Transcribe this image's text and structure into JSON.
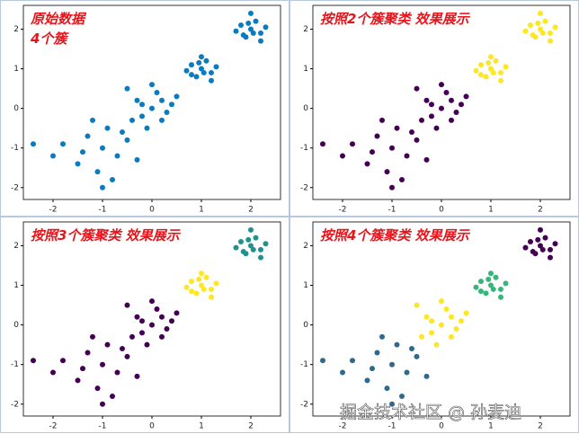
{
  "chart_data": [
    {
      "type": "scatter",
      "title": "原始数据",
      "subtitle": "4个簇",
      "xlim": [
        -2.6,
        2.6
      ],
      "ylim": [
        -2.3,
        2.6
      ],
      "xticks": [
        -2,
        -1,
        0,
        1,
        2
      ],
      "yticks": [
        -2,
        -1,
        0,
        1,
        2
      ],
      "series": [
        {
          "color": "#0a7bbf",
          "x": [
            -1.0,
            -1.3,
            -0.7,
            -1.5,
            -0.5,
            -1.1,
            -0.9,
            -1.8,
            -0.3,
            -1.2,
            -0.8,
            -2.0,
            -1.4,
            -0.6,
            -1.0,
            -2.4,
            0.0,
            -0.3,
            0.2,
            0.4,
            -0.2,
            0.1,
            -0.5,
            0.3,
            -0.1,
            0.5,
            -0.4,
            0.0,
            0.2,
            -0.2,
            1.0,
            0.8,
            1.2,
            0.9,
            1.1,
            1.3,
            0.7,
            1.0,
            1.2,
            0.8,
            1.05,
            0.95,
            2.0,
            1.8,
            2.2,
            1.9,
            2.1,
            2.3,
            1.7,
            2.0,
            2.2,
            1.85,
            2.05,
            1.95
          ],
          "y": [
            -1.0,
            -0.7,
            -1.2,
            -1.4,
            -0.8,
            -1.6,
            -0.5,
            -0.9,
            -1.3,
            -0.3,
            -1.8,
            -1.2,
            -1.1,
            -0.6,
            -2.0,
            -0.9,
            0.0,
            0.2,
            -0.3,
            0.1,
            -0.2,
            0.4,
            0.5,
            -0.1,
            -0.5,
            0.3,
            -0.3,
            0.6,
            0.2,
            0.1,
            1.0,
            1.1,
            0.9,
            0.8,
            1.2,
            1.05,
            0.95,
            1.3,
            0.7,
            0.85,
            0.9,
            1.15,
            2.0,
            2.1,
            1.9,
            1.8,
            2.2,
            2.05,
            1.95,
            2.4,
            1.7,
            1.85,
            1.9,
            2.15
          ]
        }
      ]
    },
    {
      "type": "scatter",
      "title": "按照2个簇聚类 效果展示",
      "xlim": [
        -2.6,
        2.6
      ],
      "ylim": [
        -2.3,
        2.6
      ],
      "xticks": [
        -2,
        -1,
        0,
        1,
        2
      ],
      "yticks": [
        -2,
        -1,
        0,
        1,
        2
      ],
      "series": [
        {
          "color": "#440154",
          "x": [
            -1.0,
            -1.3,
            -0.7,
            -1.5,
            -0.5,
            -1.1,
            -0.9,
            -1.8,
            -0.3,
            -1.2,
            -0.8,
            -2.0,
            -1.4,
            -0.6,
            -1.0,
            -2.4,
            0.0,
            -0.3,
            0.2,
            0.4,
            -0.2,
            0.1,
            -0.5,
            0.3,
            -0.1,
            0.5,
            -0.4,
            0.0,
            0.2,
            -0.2
          ],
          "y": [
            -1.0,
            -0.7,
            -1.2,
            -1.4,
            -0.8,
            -1.6,
            -0.5,
            -0.9,
            -1.3,
            -0.3,
            -1.8,
            -1.2,
            -1.1,
            -0.6,
            -2.0,
            -0.9,
            0.0,
            0.2,
            -0.3,
            0.1,
            -0.2,
            0.4,
            0.5,
            -0.1,
            -0.5,
            0.3,
            -0.3,
            0.6,
            0.2,
            0.1
          ]
        },
        {
          "color": "#fde725",
          "x": [
            1.0,
            0.8,
            1.2,
            0.9,
            1.1,
            1.3,
            0.7,
            1.0,
            1.2,
            0.8,
            1.05,
            0.95,
            2.0,
            1.8,
            2.2,
            1.9,
            2.1,
            2.3,
            1.7,
            2.0,
            2.2,
            1.85,
            2.05,
            1.95
          ],
          "y": [
            1.0,
            1.1,
            0.9,
            0.8,
            1.2,
            1.05,
            0.95,
            1.3,
            0.7,
            0.85,
            0.9,
            1.15,
            2.0,
            2.1,
            1.9,
            1.8,
            2.2,
            2.05,
            1.95,
            2.4,
            1.7,
            1.85,
            1.9,
            2.15
          ]
        }
      ]
    },
    {
      "type": "scatter",
      "title": "按照3个簇聚类 效果展示",
      "xlim": [
        -2.6,
        2.6
      ],
      "ylim": [
        -2.3,
        2.6
      ],
      "xticks": [
        -2,
        -1,
        0,
        1,
        2
      ],
      "yticks": [
        -2,
        -1,
        0,
        1,
        2
      ],
      "series": [
        {
          "color": "#440154",
          "x": [
            -1.0,
            -1.3,
            -0.7,
            -1.5,
            -0.5,
            -1.1,
            -0.9,
            -1.8,
            -0.3,
            -1.2,
            -0.8,
            -2.0,
            -1.4,
            -0.6,
            -1.0,
            -2.4,
            0.0,
            -0.3,
            0.2,
            0.4,
            -0.2,
            0.1,
            -0.5,
            0.3,
            -0.1,
            0.5,
            -0.4,
            0.0,
            0.2,
            -0.2
          ],
          "y": [
            -1.0,
            -0.7,
            -1.2,
            -1.4,
            -0.8,
            -1.6,
            -0.5,
            -0.9,
            -1.3,
            -0.3,
            -1.8,
            -1.2,
            -1.1,
            -0.6,
            -2.0,
            -0.9,
            0.0,
            0.2,
            -0.3,
            0.1,
            -0.2,
            0.4,
            0.5,
            -0.1,
            -0.5,
            0.3,
            -0.3,
            0.6,
            0.2,
            0.1
          ]
        },
        {
          "color": "#fde725",
          "x": [
            1.0,
            0.8,
            1.2,
            0.9,
            1.1,
            1.3,
            0.7,
            1.0,
            1.2,
            0.8,
            1.05,
            0.95
          ],
          "y": [
            1.0,
            1.1,
            0.9,
            0.8,
            1.2,
            1.05,
            0.95,
            1.3,
            0.7,
            0.85,
            0.9,
            1.15
          ]
        },
        {
          "color": "#21918c",
          "x": [
            2.0,
            1.8,
            2.2,
            1.9,
            2.1,
            2.3,
            1.7,
            2.0,
            2.2,
            1.85,
            2.05,
            1.95
          ],
          "y": [
            2.0,
            2.1,
            1.9,
            1.8,
            2.2,
            2.05,
            1.95,
            2.4,
            1.7,
            1.85,
            1.9,
            2.15
          ]
        }
      ]
    },
    {
      "type": "scatter",
      "title": "按照4个簇聚类 效果展示",
      "xlim": [
        -2.6,
        2.6
      ],
      "ylim": [
        -2.3,
        2.6
      ],
      "xticks": [
        -2,
        -1,
        0,
        1,
        2
      ],
      "yticks": [
        -2,
        -1,
        0,
        1,
        2
      ],
      "series": [
        {
          "color": "#31688e",
          "x": [
            -1.0,
            -1.3,
            -0.7,
            -1.5,
            -0.5,
            -1.1,
            -0.9,
            -1.8,
            -0.3,
            -1.2,
            -0.8,
            -2.0,
            -1.4,
            -0.6,
            -1.0,
            -2.4
          ],
          "y": [
            -1.0,
            -0.7,
            -1.2,
            -1.4,
            -0.8,
            -1.6,
            -0.5,
            -0.9,
            -1.3,
            -0.3,
            -1.8,
            -1.2,
            -1.1,
            -0.6,
            -2.0,
            -0.9
          ]
        },
        {
          "color": "#fde725",
          "x": [
            0.0,
            -0.3,
            0.2,
            0.4,
            -0.2,
            0.1,
            -0.5,
            0.3,
            -0.1,
            0.5,
            -0.4,
            0.0,
            0.2,
            -0.2
          ],
          "y": [
            0.0,
            0.2,
            -0.3,
            0.1,
            -0.2,
            0.4,
            0.5,
            -0.1,
            -0.5,
            0.3,
            -0.3,
            0.6,
            0.2,
            0.1
          ]
        },
        {
          "color": "#35b779",
          "x": [
            1.0,
            0.8,
            1.2,
            0.9,
            1.1,
            1.3,
            0.7,
            1.0,
            1.2,
            0.8,
            1.05,
            0.95
          ],
          "y": [
            1.0,
            1.1,
            0.9,
            0.8,
            1.2,
            1.05,
            0.95,
            1.3,
            0.7,
            0.85,
            0.9,
            1.15
          ]
        },
        {
          "color": "#440154",
          "x": [
            2.0,
            1.8,
            2.2,
            1.9,
            2.1,
            2.3,
            1.7,
            2.0,
            2.2,
            1.85,
            2.05,
            1.95
          ],
          "y": [
            2.0,
            2.1,
            1.9,
            1.8,
            2.2,
            2.05,
            1.95,
            2.4,
            1.7,
            1.85,
            1.9,
            2.15
          ]
        }
      ]
    }
  ],
  "watermark": "掘金技术社区 @ 孙麦迪"
}
